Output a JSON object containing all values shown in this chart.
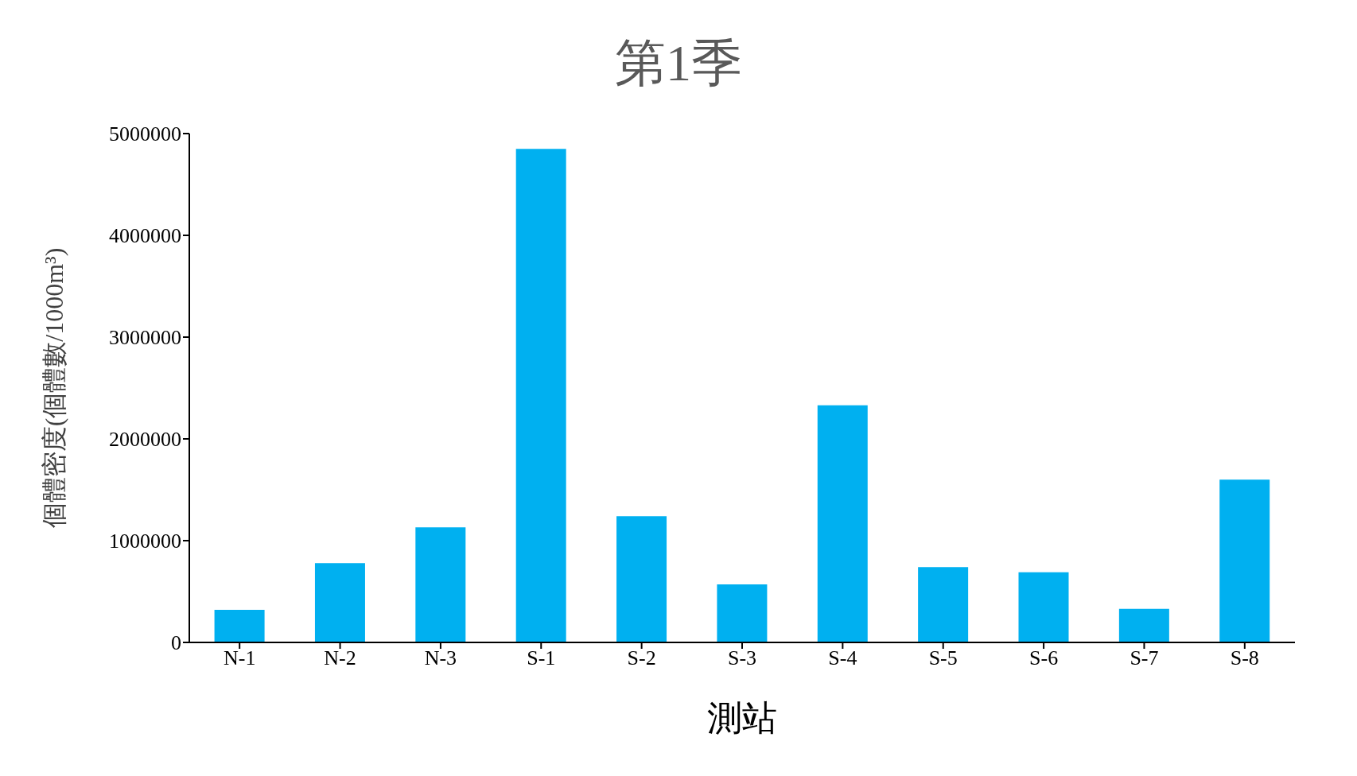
{
  "chart_data": {
    "type": "bar",
    "title": "第1季",
    "xlabel": "測站",
    "ylabel": "個體密度(個體數/1000m³)",
    "categories": [
      "N-1",
      "N-2",
      "N-3",
      "S-1",
      "S-2",
      "S-3",
      "S-4",
      "S-5",
      "S-6",
      "S-7",
      "S-8"
    ],
    "values": [
      320000,
      780000,
      1130000,
      4850000,
      1240000,
      570000,
      2330000,
      740000,
      690000,
      330000,
      1600000
    ],
    "color": "#00b0f0",
    "ylim": [
      0,
      5000000
    ],
    "yticks": [
      0,
      1000000,
      2000000,
      3000000,
      4000000,
      5000000
    ],
    "grid": false
  }
}
